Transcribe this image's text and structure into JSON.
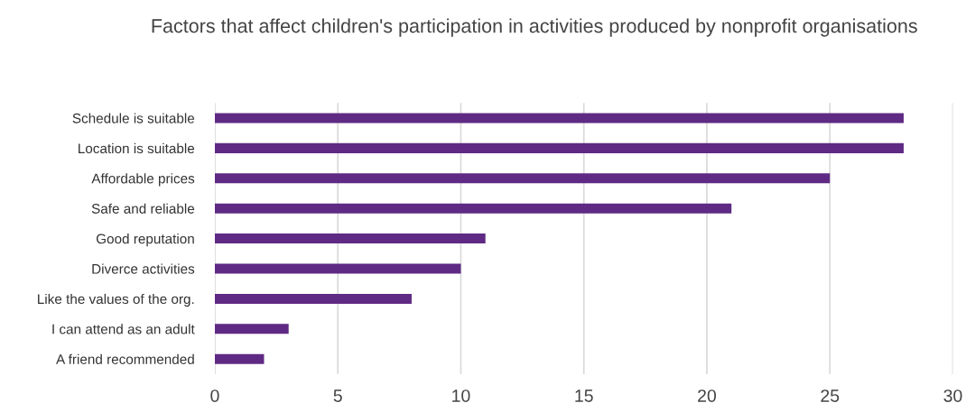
{
  "chart_data": {
    "type": "bar",
    "orientation": "horizontal",
    "title": "Factors that affect children's participation in activities produced by nonprofit organisations",
    "categories": [
      "Schedule is suitable",
      "Location is suitable",
      "Affordable prices",
      "Safe and reliable",
      "Good reputation",
      "Diverce activities",
      "Like the values of the org.",
      "I can attend as an adult",
      "A friend recommended"
    ],
    "values": [
      28,
      28,
      25,
      21,
      11,
      10,
      8,
      3,
      2
    ],
    "color": "#5f2a84",
    "xlim": [
      0,
      30
    ],
    "xticks": [
      0,
      5,
      10,
      15,
      20,
      25,
      30
    ],
    "grid": "x"
  }
}
